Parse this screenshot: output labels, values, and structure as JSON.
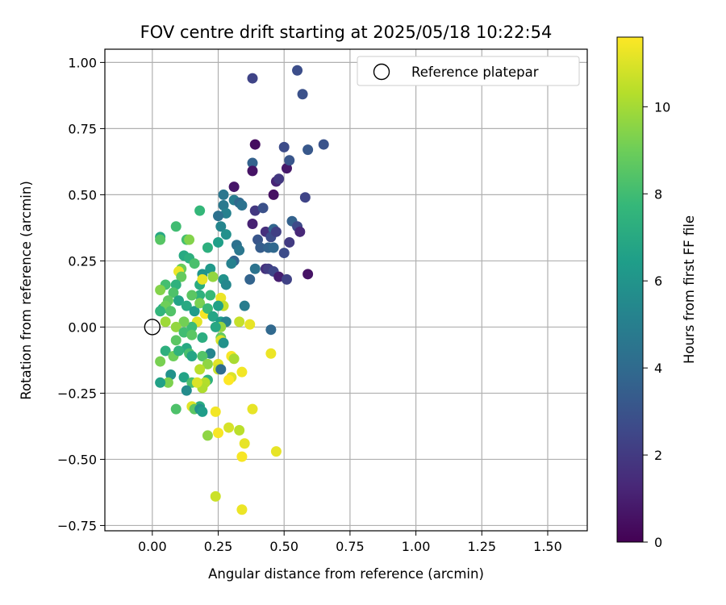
{
  "chart_data": {
    "type": "scatter",
    "title": "FOV centre drift starting at 2025/05/18 10:22:54",
    "xlabel": "Angular distance from reference (arcmin)",
    "ylabel": "Rotation from reference (arcmin)",
    "xlim": [
      -0.18,
      1.65
    ],
    "ylim": [
      -0.77,
      1.05
    ],
    "xticks": [
      "0.00",
      "0.25",
      "0.50",
      "0.75",
      "1.00",
      "1.25",
      "1.50"
    ],
    "xtick_values": [
      0,
      0.25,
      0.5,
      0.75,
      1.0,
      1.25,
      1.5
    ],
    "yticks": [
      "1.00",
      "0.75",
      "0.50",
      "0.25",
      "0.00",
      "−0.25",
      "−0.50",
      "−0.75"
    ],
    "ytick_values": [
      1.0,
      0.75,
      0.5,
      0.25,
      0,
      -0.25,
      -0.5,
      -0.75
    ],
    "grid": true,
    "legend": {
      "placement": "top-right",
      "entries": [
        {
          "label": "Reference platepar",
          "marker": "open-circle"
        }
      ]
    },
    "reference_point": {
      "x": 0.0,
      "y": 0.0
    },
    "colorbar": {
      "label": "Hours from first FF file",
      "colormap": "viridis",
      "range": [
        0,
        11.6
      ],
      "ticks": [
        "0",
        "2",
        "4",
        "6",
        "8",
        "10"
      ],
      "tick_values": [
        0,
        2,
        4,
        6,
        8,
        10
      ]
    },
    "colormap_stops": [
      "#440154",
      "#482878",
      "#3e4989",
      "#31688e",
      "#26828e",
      "#1f9e89",
      "#35b779",
      "#6ece58",
      "#b5de2b",
      "#fde725"
    ],
    "points": [
      {
        "x": 0.38,
        "y": 0.94,
        "h": 2.4
      },
      {
        "x": 0.55,
        "y": 0.97,
        "h": 2.8
      },
      {
        "x": 0.57,
        "y": 0.88,
        "h": 2.9
      },
      {
        "x": 0.39,
        "y": 0.69,
        "h": 0.4
      },
      {
        "x": 0.5,
        "y": 0.68,
        "h": 2.7
      },
      {
        "x": 0.59,
        "y": 0.67,
        "h": 3.2
      },
      {
        "x": 0.65,
        "y": 0.69,
        "h": 3.0
      },
      {
        "x": 0.38,
        "y": 0.62,
        "h": 3.6
      },
      {
        "x": 0.38,
        "y": 0.59,
        "h": 0.6
      },
      {
        "x": 0.51,
        "y": 0.6,
        "h": 0.8
      },
      {
        "x": 0.52,
        "y": 0.63,
        "h": 3.1
      },
      {
        "x": 0.47,
        "y": 0.55,
        "h": 1.2
      },
      {
        "x": 0.48,
        "y": 0.56,
        "h": 1.9
      },
      {
        "x": 0.31,
        "y": 0.53,
        "h": 0.7
      },
      {
        "x": 0.27,
        "y": 0.5,
        "h": 4.6
      },
      {
        "x": 0.46,
        "y": 0.5,
        "h": 0.5
      },
      {
        "x": 0.58,
        "y": 0.49,
        "h": 2.4
      },
      {
        "x": 0.31,
        "y": 0.48,
        "h": 4.9
      },
      {
        "x": 0.33,
        "y": 0.47,
        "h": 3.9
      },
      {
        "x": 0.34,
        "y": 0.46,
        "h": 4.4
      },
      {
        "x": 0.27,
        "y": 0.46,
        "h": 4.7
      },
      {
        "x": 0.39,
        "y": 0.44,
        "h": 1.9
      },
      {
        "x": 0.42,
        "y": 0.45,
        "h": 2.9
      },
      {
        "x": 0.28,
        "y": 0.43,
        "h": 5.1
      },
      {
        "x": 0.25,
        "y": 0.42,
        "h": 4.3
      },
      {
        "x": 0.18,
        "y": 0.44,
        "h": 7.7
      },
      {
        "x": 0.26,
        "y": 0.38,
        "h": 5.3
      },
      {
        "x": 0.38,
        "y": 0.39,
        "h": 1.1
      },
      {
        "x": 0.43,
        "y": 0.36,
        "h": 1.6
      },
      {
        "x": 0.46,
        "y": 0.37,
        "h": 3.8
      },
      {
        "x": 0.45,
        "y": 0.34,
        "h": 2.7
      },
      {
        "x": 0.47,
        "y": 0.36,
        "h": 2.2
      },
      {
        "x": 0.53,
        "y": 0.4,
        "h": 3.6
      },
      {
        "x": 0.55,
        "y": 0.38,
        "h": 2.6
      },
      {
        "x": 0.56,
        "y": 0.36,
        "h": 1.3
      },
      {
        "x": 0.52,
        "y": 0.32,
        "h": 2.0
      },
      {
        "x": 0.4,
        "y": 0.33,
        "h": 3.1
      },
      {
        "x": 0.41,
        "y": 0.3,
        "h": 3.4
      },
      {
        "x": 0.44,
        "y": 0.3,
        "h": 3.7
      },
      {
        "x": 0.46,
        "y": 0.3,
        "h": 3.9
      },
      {
        "x": 0.5,
        "y": 0.28,
        "h": 2.7
      },
      {
        "x": 0.28,
        "y": 0.35,
        "h": 5.8
      },
      {
        "x": 0.25,
        "y": 0.32,
        "h": 6.5
      },
      {
        "x": 0.21,
        "y": 0.3,
        "h": 7.3
      },
      {
        "x": 0.32,
        "y": 0.31,
        "h": 4.3
      },
      {
        "x": 0.33,
        "y": 0.29,
        "h": 4.6
      },
      {
        "x": 0.43,
        "y": 0.22,
        "h": 1.6
      },
      {
        "x": 0.44,
        "y": 0.22,
        "h": 2.1
      },
      {
        "x": 0.46,
        "y": 0.21,
        "h": 2.5
      },
      {
        "x": 0.48,
        "y": 0.19,
        "h": 1.0
      },
      {
        "x": 0.51,
        "y": 0.18,
        "h": 2.3
      },
      {
        "x": 0.59,
        "y": 0.2,
        "h": 0.6
      },
      {
        "x": 0.39,
        "y": 0.22,
        "h": 4.4
      },
      {
        "x": 0.37,
        "y": 0.18,
        "h": 3.7
      },
      {
        "x": 0.31,
        "y": 0.25,
        "h": 3.8
      },
      {
        "x": 0.3,
        "y": 0.24,
        "h": 5.1
      },
      {
        "x": 0.27,
        "y": 0.18,
        "h": 5.9
      },
      {
        "x": 0.28,
        "y": 0.16,
        "h": 5.4
      },
      {
        "x": 0.22,
        "y": 0.22,
        "h": 6.2
      },
      {
        "x": 0.19,
        "y": 0.2,
        "h": 6.0
      },
      {
        "x": 0.12,
        "y": 0.27,
        "h": 7.0
      },
      {
        "x": 0.14,
        "y": 0.26,
        "h": 7.3
      },
      {
        "x": 0.16,
        "y": 0.24,
        "h": 8.2
      },
      {
        "x": 0.09,
        "y": 0.38,
        "h": 8.0
      },
      {
        "x": 0.13,
        "y": 0.33,
        "h": 8.1
      },
      {
        "x": 0.14,
        "y": 0.33,
        "h": 9.4
      },
      {
        "x": 0.03,
        "y": 0.34,
        "h": 6.9
      },
      {
        "x": 0.03,
        "y": 0.33,
        "h": 8.5
      },
      {
        "x": 0.11,
        "y": 0.22,
        "h": 8.9
      },
      {
        "x": 0.1,
        "y": 0.21,
        "h": 11.3
      },
      {
        "x": 0.11,
        "y": 0.19,
        "h": 8.8
      },
      {
        "x": 0.18,
        "y": 0.16,
        "h": 7.1
      },
      {
        "x": 0.19,
        "y": 0.18,
        "h": 11.2
      },
      {
        "x": 0.23,
        "y": 0.19,
        "h": 9.7
      },
      {
        "x": 0.26,
        "y": 0.11,
        "h": 11.3
      },
      {
        "x": 0.27,
        "y": 0.08,
        "h": 10.6
      },
      {
        "x": 0.35,
        "y": 0.08,
        "h": 4.9
      },
      {
        "x": 0.25,
        "y": 0.08,
        "h": 6.6
      },
      {
        "x": 0.22,
        "y": 0.12,
        "h": 7.8
      },
      {
        "x": 0.18,
        "y": 0.12,
        "h": 7.4
      },
      {
        "x": 0.15,
        "y": 0.12,
        "h": 8.6
      },
      {
        "x": 0.09,
        "y": 0.16,
        "h": 7.4
      },
      {
        "x": 0.08,
        "y": 0.13,
        "h": 8.3
      },
      {
        "x": 0.05,
        "y": 0.16,
        "h": 8.1
      },
      {
        "x": 0.03,
        "y": 0.14,
        "h": 9.4
      },
      {
        "x": 0.06,
        "y": 0.1,
        "h": 8.7
      },
      {
        "x": 0.04,
        "y": 0.07,
        "h": 6.8
      },
      {
        "x": 0.05,
        "y": 0.08,
        "h": 9.0
      },
      {
        "x": 0.07,
        "y": 0.06,
        "h": 8.4
      },
      {
        "x": 0.1,
        "y": 0.1,
        "h": 6.7
      },
      {
        "x": 0.13,
        "y": 0.08,
        "h": 7.0
      },
      {
        "x": 0.16,
        "y": 0.06,
        "h": 6.3
      },
      {
        "x": 0.18,
        "y": 0.09,
        "h": 9.2
      },
      {
        "x": 0.2,
        "y": 0.05,
        "h": 11.5
      },
      {
        "x": 0.21,
        "y": 0.07,
        "h": 7.8
      },
      {
        "x": 0.23,
        "y": 0.04,
        "h": 6.8
      },
      {
        "x": 0.26,
        "y": 0.02,
        "h": 6.4
      },
      {
        "x": 0.28,
        "y": 0.02,
        "h": 5.2
      },
      {
        "x": 0.33,
        "y": 0.02,
        "h": 10.6
      },
      {
        "x": 0.37,
        "y": 0.01,
        "h": 11.2
      },
      {
        "x": 0.45,
        "y": -0.01,
        "h": 3.9
      },
      {
        "x": 0.26,
        "y": 0.0,
        "h": 9.7
      },
      {
        "x": 0.24,
        "y": 0.0,
        "h": 6.9
      },
      {
        "x": 0.17,
        "y": 0.02,
        "h": 11.1
      },
      {
        "x": 0.15,
        "y": 0.0,
        "h": 7.9
      },
      {
        "x": 0.12,
        "y": 0.02,
        "h": 9.1
      },
      {
        "x": 0.09,
        "y": 0.0,
        "h": 9.7
      },
      {
        "x": 0.05,
        "y": 0.02,
        "h": 9.9
      },
      {
        "x": 0.03,
        "y": 0.06,
        "h": 7.6
      },
      {
        "x": 0.12,
        "y": -0.02,
        "h": 8.0
      },
      {
        "x": 0.15,
        "y": -0.03,
        "h": 8.6
      },
      {
        "x": 0.19,
        "y": -0.04,
        "h": 7.2
      },
      {
        "x": 0.26,
        "y": -0.04,
        "h": 8.8
      },
      {
        "x": 0.26,
        "y": -0.05,
        "h": 10.9
      },
      {
        "x": 0.27,
        "y": -0.06,
        "h": 5.9
      },
      {
        "x": 0.09,
        "y": -0.05,
        "h": 8.6
      },
      {
        "x": 0.05,
        "y": -0.09,
        "h": 7.3
      },
      {
        "x": 0.13,
        "y": -0.08,
        "h": 7.0
      },
      {
        "x": 0.14,
        "y": -0.1,
        "h": 8.2
      },
      {
        "x": 0.15,
        "y": -0.11,
        "h": 6.8
      },
      {
        "x": 0.08,
        "y": -0.11,
        "h": 9.0
      },
      {
        "x": 0.1,
        "y": -0.09,
        "h": 7.5
      },
      {
        "x": 0.22,
        "y": -0.1,
        "h": 5.3
      },
      {
        "x": 0.19,
        "y": -0.11,
        "h": 8.4
      },
      {
        "x": 0.3,
        "y": -0.11,
        "h": 11.5
      },
      {
        "x": 0.31,
        "y": -0.12,
        "h": 10.1
      },
      {
        "x": 0.45,
        "y": -0.1,
        "h": 11.3
      },
      {
        "x": 0.21,
        "y": -0.14,
        "h": 9.6
      },
      {
        "x": 0.25,
        "y": -0.14,
        "h": 11.1
      },
      {
        "x": 0.25,
        "y": -0.16,
        "h": 10.6
      },
      {
        "x": 0.26,
        "y": -0.16,
        "h": 4.1
      },
      {
        "x": 0.18,
        "y": -0.16,
        "h": 10.4
      },
      {
        "x": 0.03,
        "y": -0.13,
        "h": 9.2
      },
      {
        "x": 0.07,
        "y": -0.18,
        "h": 5.9
      },
      {
        "x": 0.34,
        "y": -0.17,
        "h": 11.4
      },
      {
        "x": 0.3,
        "y": -0.19,
        "h": 11.0
      },
      {
        "x": 0.29,
        "y": -0.2,
        "h": 11.6
      },
      {
        "x": 0.21,
        "y": -0.2,
        "h": 7.4
      },
      {
        "x": 0.2,
        "y": -0.21,
        "h": 10.3
      },
      {
        "x": 0.12,
        "y": -0.19,
        "h": 6.7
      },
      {
        "x": 0.15,
        "y": -0.21,
        "h": 8.2
      },
      {
        "x": 0.06,
        "y": -0.21,
        "h": 9.3
      },
      {
        "x": 0.03,
        "y": -0.21,
        "h": 6.6
      },
      {
        "x": 0.19,
        "y": -0.23,
        "h": 10.2
      },
      {
        "x": 0.17,
        "y": -0.21,
        "h": 11.0
      },
      {
        "x": 0.13,
        "y": -0.24,
        "h": 5.6
      },
      {
        "x": 0.18,
        "y": -0.3,
        "h": 7.1
      },
      {
        "x": 0.15,
        "y": -0.3,
        "h": 11.1
      },
      {
        "x": 0.16,
        "y": -0.31,
        "h": 8.6
      },
      {
        "x": 0.18,
        "y": -0.31,
        "h": 5.8
      },
      {
        "x": 0.19,
        "y": -0.32,
        "h": 6.4
      },
      {
        "x": 0.09,
        "y": -0.31,
        "h": 8.3
      },
      {
        "x": 0.24,
        "y": -0.32,
        "h": 11.4
      },
      {
        "x": 0.38,
        "y": -0.31,
        "h": 11.2
      },
      {
        "x": 0.29,
        "y": -0.38,
        "h": 10.9
      },
      {
        "x": 0.33,
        "y": -0.39,
        "h": 10.4
      },
      {
        "x": 0.21,
        "y": -0.41,
        "h": 9.6
      },
      {
        "x": 0.25,
        "y": -0.4,
        "h": 11.5
      },
      {
        "x": 0.35,
        "y": -0.44,
        "h": 11.2
      },
      {
        "x": 0.47,
        "y": -0.47,
        "h": 11.2
      },
      {
        "x": 0.34,
        "y": -0.49,
        "h": 11.5
      },
      {
        "x": 0.24,
        "y": -0.64,
        "h": 10.7
      },
      {
        "x": 0.34,
        "y": -0.69,
        "h": 11.3
      }
    ]
  }
}
